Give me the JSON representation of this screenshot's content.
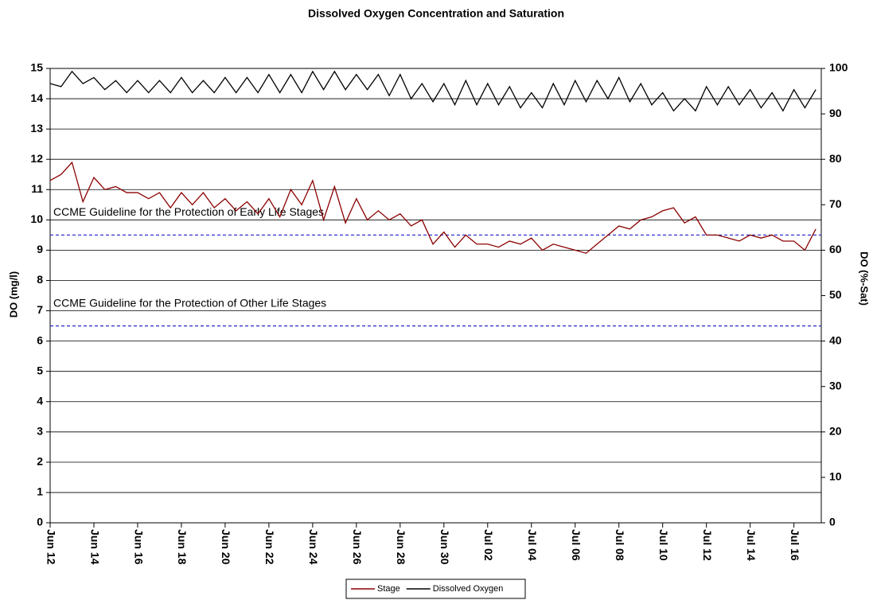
{
  "chart_data": {
    "type": "line",
    "title": "Dissolved Oxygen Concentration and Saturation",
    "y_label": "DO (mg/l)",
    "y2_label": "DO (%-Sat)",
    "x": [
      0,
      0.5,
      1,
      1.5,
      2,
      2.5,
      3,
      3.5,
      4,
      4.5,
      5,
      5.5,
      6,
      6.5,
      7,
      7.5,
      8,
      8.5,
      9,
      9.5,
      10,
      10.5,
      11,
      11.5,
      12,
      12.5,
      13,
      13.5,
      14,
      14.5,
      15,
      15.5,
      16,
      16.5,
      17,
      17.5,
      18,
      18.5,
      19,
      19.5,
      20,
      20.5,
      21,
      21.5,
      22,
      22.5,
      23,
      23.5,
      24,
      24.5,
      25,
      25.5,
      26,
      26.5,
      27,
      27.5,
      28,
      28.5,
      29,
      29.5,
      30,
      30.5,
      31,
      31.5,
      32,
      32.5,
      33,
      33.5,
      34,
      34.5,
      35
    ],
    "series": [
      {
        "name": "Stage",
        "color": "#8b0000",
        "values": [
          11.3,
          11.5,
          11.9,
          10.6,
          11.4,
          11.0,
          11.1,
          10.9,
          10.9,
          10.7,
          10.9,
          10.4,
          10.9,
          10.5,
          10.9,
          10.4,
          10.7,
          10.3,
          10.6,
          10.2,
          10.7,
          10.1,
          11.0,
          10.5,
          11.3,
          10.0,
          11.1,
          9.9,
          10.7,
          10.0,
          10.3,
          10.0,
          10.2,
          9.8,
          10.0,
          9.2,
          9.6,
          9.1,
          9.5,
          9.2,
          9.2,
          9.1,
          9.3,
          9.2,
          9.4,
          9.0,
          9.2,
          9.1,
          9.0,
          8.9,
          9.2,
          9.5,
          9.8,
          9.7,
          10.0,
          10.1,
          10.3,
          10.4,
          9.9,
          10.1,
          9.5,
          9.5,
          9.4,
          9.3,
          9.5,
          9.4,
          9.5,
          9.3,
          9.3,
          9.0,
          9.7
        ]
      },
      {
        "name": "Dissolved Oxygen",
        "color": "#000000",
        "values": [
          14.5,
          14.4,
          14.9,
          14.5,
          14.7,
          14.3,
          14.6,
          14.2,
          14.6,
          14.2,
          14.6,
          14.2,
          14.7,
          14.2,
          14.6,
          14.2,
          14.7,
          14.2,
          14.7,
          14.2,
          14.8,
          14.2,
          14.8,
          14.2,
          14.9,
          14.3,
          14.9,
          14.3,
          14.8,
          14.3,
          14.8,
          14.1,
          14.8,
          14.0,
          14.5,
          13.9,
          14.5,
          13.8,
          14.6,
          13.8,
          14.5,
          13.8,
          14.4,
          13.7,
          14.2,
          13.7,
          14.5,
          13.8,
          14.6,
          13.9,
          14.6,
          14.0,
          14.7,
          13.9,
          14.5,
          13.8,
          14.2,
          13.6,
          14.0,
          13.6,
          14.4,
          13.8,
          14.4,
          13.8,
          14.3,
          13.7,
          14.2,
          13.6,
          14.3,
          13.7,
          14.3
        ]
      }
    ],
    "reference_lines": [
      {
        "value": 9.5,
        "label": "CCME Guideline for the Protection of Early Life Stages",
        "color": "#3333cc"
      },
      {
        "value": 6.5,
        "label": "CCME Guideline for the Protection of Other Life Stages",
        "color": "#3333cc"
      }
    ],
    "xlim": [
      0,
      35.25
    ],
    "xticks": [
      {
        "value": 0,
        "label": "Jun 12"
      },
      {
        "value": 2,
        "label": "Jun 14"
      },
      {
        "value": 4,
        "label": "Jun 16"
      },
      {
        "value": 6,
        "label": "Jun 18"
      },
      {
        "value": 8,
        "label": "Jun 20"
      },
      {
        "value": 10,
        "label": "Jun 22"
      },
      {
        "value": 12,
        "label": "Jun 24"
      },
      {
        "value": 14,
        "label": "Jun 26"
      },
      {
        "value": 16,
        "label": "Jun 28"
      },
      {
        "value": 18,
        "label": "Jun 30"
      },
      {
        "value": 20,
        "label": "Jul 02"
      },
      {
        "value": 22,
        "label": "Jul 04"
      },
      {
        "value": 24,
        "label": "Jul 06"
      },
      {
        "value": 26,
        "label": "Jul 08"
      },
      {
        "value": 28,
        "label": "Jul 10"
      },
      {
        "value": 30,
        "label": "Jul 12"
      },
      {
        "value": 32,
        "label": "Jul 14"
      },
      {
        "value": 34,
        "label": "Jul 16"
      }
    ],
    "ylim": [
      0,
      15
    ],
    "yticks": [
      0,
      1,
      2,
      3,
      4,
      5,
      6,
      7,
      8,
      9,
      10,
      11,
      12,
      13,
      14,
      15
    ],
    "y2lim": [
      0,
      100
    ],
    "y2ticks": [
      0,
      10,
      20,
      30,
      40,
      50,
      60,
      70,
      80,
      90,
      100
    ],
    "grid": true
  }
}
